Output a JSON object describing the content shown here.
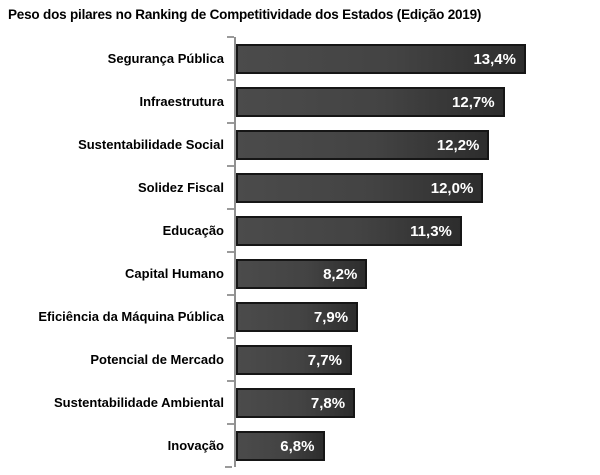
{
  "header": {
    "title": "Peso dos pilares no Ranking de Competitividade dos Estados (Edição 2019)"
  },
  "chart_data": {
    "type": "bar",
    "orientation": "horizontal",
    "title": "Peso dos pilares no Ranking de Competitividade dos Estados (Edição 2019)",
    "categories": [
      "Segurança Pública",
      "Infraestrutura",
      "Sustentabilidade Social",
      "Solidez Fiscal",
      "Educação",
      "Capital Humano",
      "Eficiência da Máquina Pública",
      "Potencial de Mercado",
      "Sustentabilidade Ambiental",
      "Inovação"
    ],
    "values": [
      13.4,
      12.7,
      12.2,
      12.0,
      11.3,
      8.2,
      7.9,
      7.7,
      7.8,
      6.8
    ],
    "value_labels": [
      "13,4%",
      "12,7%",
      "12,2%",
      "12,0%",
      "11,3%",
      "8,2%",
      "7,9%",
      "7,7%",
      "7,8%",
      "6,8%"
    ],
    "unit": "%",
    "xlim": [
      3.9,
      13.4
    ],
    "grid": false,
    "legend": false,
    "value_label_position": "inside-end",
    "colors": {
      "bar_fill_light": "#4b4b4b",
      "bar_fill_dark": "#2d2d2d",
      "bar_border": "#161616",
      "value_text": "#ffffff",
      "axis": "#9a9a9a",
      "label_text": "#000000",
      "title_text": "#000000",
      "background": "#ffffff"
    }
  }
}
